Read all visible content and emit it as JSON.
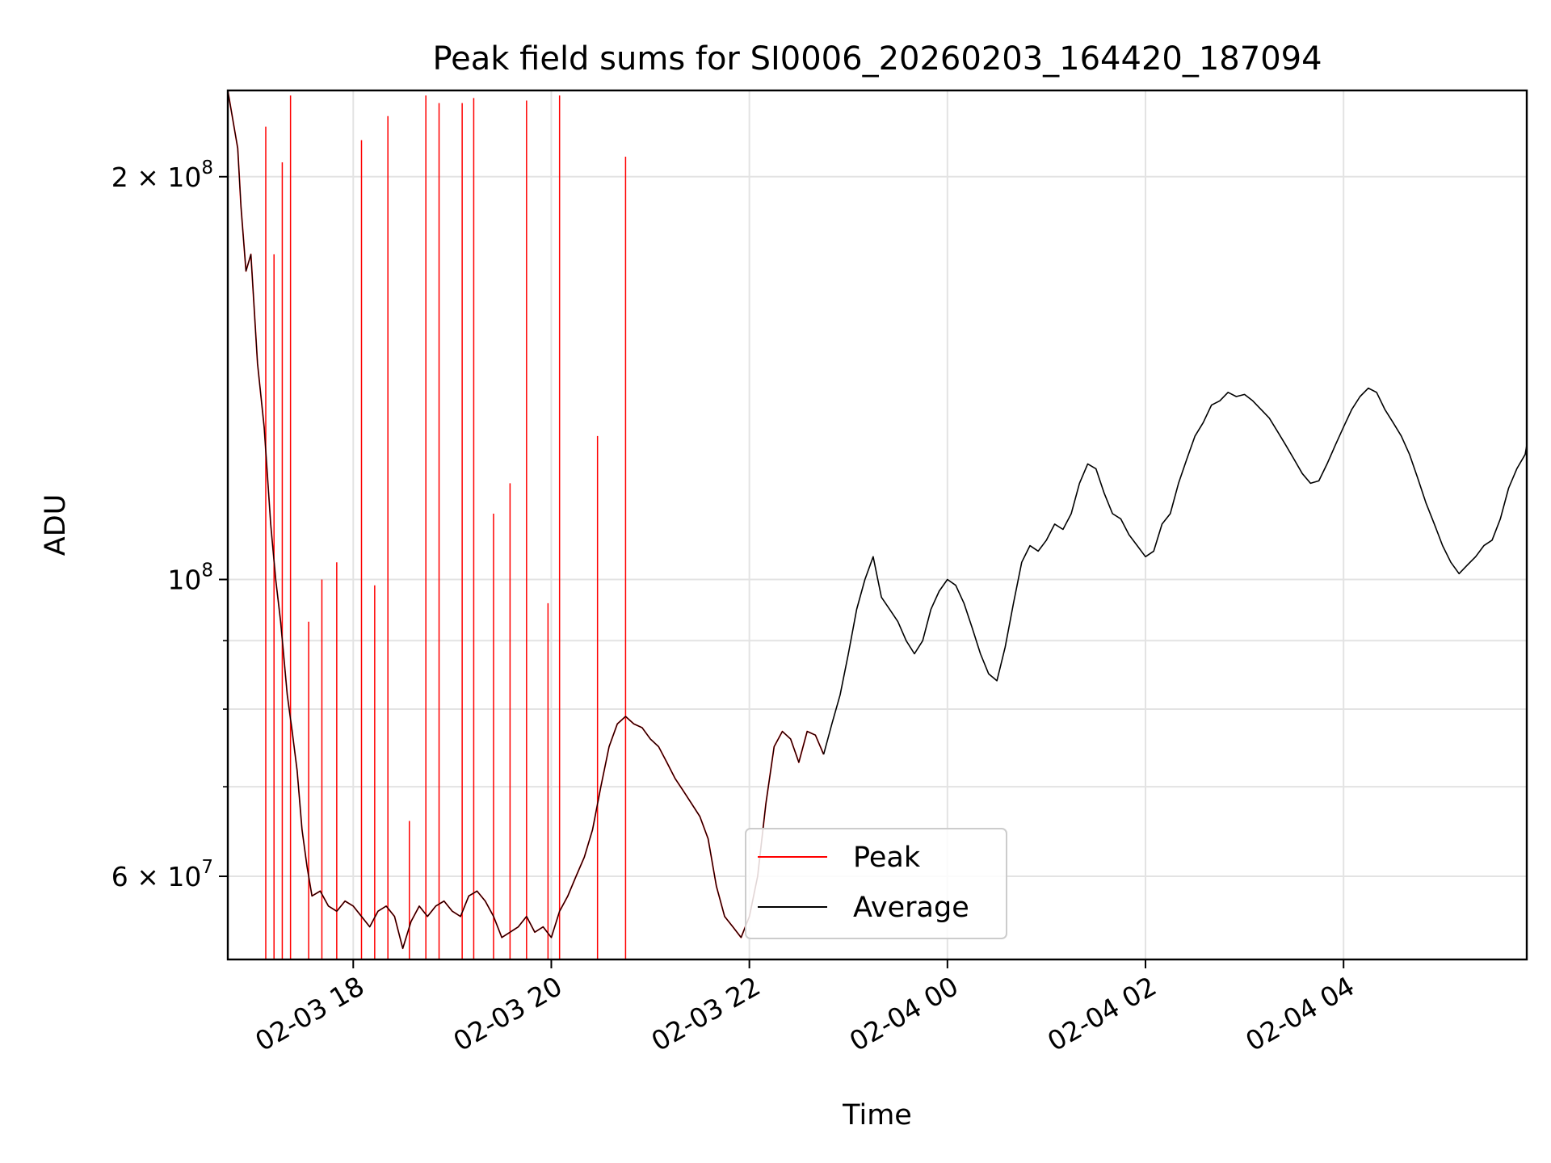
{
  "chart_data": {
    "type": "line",
    "title": "Peak field sums for SI0006_20260203_164420_187094",
    "xlabel": "Time",
    "ylabel": "ADU",
    "yscale": "log",
    "ylim": [
      52000000,
      232000000
    ],
    "xlim": [
      "2026-02-03 16:44",
      "2026-02-04 05:51"
    ],
    "grid": true,
    "legend": "bottom-center",
    "x_ticks": [
      {
        "label": "02-03 18",
        "t": "2026-02-03 18:00"
      },
      {
        "label": "02-03 20",
        "t": "2026-02-03 20:00"
      },
      {
        "label": "02-03 22",
        "t": "2026-02-03 22:00"
      },
      {
        "label": "02-04 00",
        "t": "2026-02-04 00:00"
      },
      {
        "label": "02-04 02",
        "t": "2026-02-04 02:00"
      },
      {
        "label": "02-04 04",
        "t": "2026-02-04 04:00"
      }
    ],
    "y_ticks": [
      {
        "base": "2",
        "exp": "8",
        "value": 200000000
      },
      {
        "base": "",
        "exp": "8",
        "value": 100000000
      },
      {
        "base": "6",
        "exp": "7",
        "value": 60000000
      }
    ],
    "y_minor_ticks": [
      70000000,
      80000000,
      90000000
    ],
    "series": [
      {
        "name": "Peak",
        "color": "#ff0000",
        "points": [
          [
            "2026-02-03 16:44",
            232000000
          ],
          [
            "2026-02-03 16:50",
            210000000
          ],
          [
            "2026-02-03 16:52",
            190000000
          ],
          [
            "2026-02-03 16:55",
            170000000
          ],
          [
            "2026-02-03 16:58",
            175000000
          ],
          [
            "2026-02-03 17:02",
            145000000
          ],
          [
            "2026-02-03 17:06",
            130000000
          ],
          [
            "2026-02-03 17:10",
            110000000
          ],
          [
            "2026-02-03 17:13",
            100000000
          ],
          [
            "2026-02-03 17:16",
            93000000
          ],
          [
            "2026-02-03 17:20",
            82000000
          ],
          [
            "2026-02-03 17:23",
            77000000
          ],
          [
            "2026-02-03 17:26",
            72000000
          ],
          [
            "2026-02-03 17:29",
            65000000
          ],
          [
            "2026-02-03 17:32",
            61000000
          ],
          [
            "2026-02-03 17:35",
            58000000
          ],
          [
            "2026-02-03 17:40",
            58500000
          ],
          [
            "2026-02-03 17:45",
            57000000
          ],
          [
            "2026-02-03 17:50",
            56500000
          ],
          [
            "2026-02-03 17:55",
            57500000
          ],
          [
            "2026-02-03 18:00",
            57000000
          ],
          [
            "2026-02-03 18:05",
            56000000
          ],
          [
            "2026-02-03 18:10",
            55000000
          ],
          [
            "2026-02-03 18:15",
            56500000
          ],
          [
            "2026-02-03 18:20",
            57000000
          ],
          [
            "2026-02-03 18:25",
            56000000
          ],
          [
            "2026-02-03 18:30",
            53000000
          ],
          [
            "2026-02-03 18:35",
            55500000
          ],
          [
            "2026-02-03 18:40",
            57000000
          ],
          [
            "2026-02-03 18:45",
            56000000
          ],
          [
            "2026-02-03 18:50",
            57000000
          ],
          [
            "2026-02-03 18:55",
            57500000
          ],
          [
            "2026-02-03 19:00",
            56500000
          ],
          [
            "2026-02-03 19:05",
            56000000
          ],
          [
            "2026-02-03 19:10",
            58000000
          ],
          [
            "2026-02-03 19:15",
            58500000
          ],
          [
            "2026-02-03 19:20",
            57500000
          ],
          [
            "2026-02-03 19:25",
            56000000
          ],
          [
            "2026-02-03 19:30",
            54000000
          ],
          [
            "2026-02-03 19:35",
            54500000
          ],
          [
            "2026-02-03 19:40",
            55000000
          ],
          [
            "2026-02-03 19:45",
            56000000
          ],
          [
            "2026-02-03 19:50",
            54500000
          ],
          [
            "2026-02-03 19:55",
            55000000
          ],
          [
            "2026-02-03 20:00",
            54000000
          ],
          [
            "2026-02-03 20:05",
            56500000
          ],
          [
            "2026-02-03 20:10",
            58000000
          ],
          [
            "2026-02-03 20:15",
            60000000
          ],
          [
            "2026-02-03 20:20",
            62000000
          ],
          [
            "2026-02-03 20:25",
            65000000
          ],
          [
            "2026-02-03 20:30",
            70000000
          ],
          [
            "2026-02-03 20:35",
            75000000
          ],
          [
            "2026-02-03 20:40",
            78000000
          ],
          [
            "2026-02-03 20:45",
            79000000
          ],
          [
            "2026-02-03 20:50",
            78000000
          ],
          [
            "2026-02-03 20:55",
            77500000
          ],
          [
            "2026-02-03 21:00",
            76000000
          ],
          [
            "2026-02-03 21:05",
            75000000
          ],
          [
            "2026-02-03 21:10",
            73000000
          ],
          [
            "2026-02-03 21:15",
            71000000
          ],
          [
            "2026-02-03 21:20",
            69500000
          ],
          [
            "2026-02-03 21:25",
            68000000
          ],
          [
            "2026-02-03 21:30",
            66500000
          ],
          [
            "2026-02-03 21:35",
            64000000
          ],
          [
            "2026-02-03 21:40",
            59000000
          ],
          [
            "2026-02-03 21:45",
            56000000
          ],
          [
            "2026-02-03 21:50",
            55000000
          ],
          [
            "2026-02-03 21:55",
            54000000
          ],
          [
            "2026-02-03 22:00",
            56000000
          ],
          [
            "2026-02-03 22:05",
            60000000
          ],
          [
            "2026-02-03 22:10",
            68000000
          ],
          [
            "2026-02-03 22:15",
            75000000
          ],
          [
            "2026-02-03 22:20",
            77000000
          ],
          [
            "2026-02-03 22:25",
            76000000
          ],
          [
            "2026-02-03 22:30",
            73000000
          ],
          [
            "2026-02-03 22:35",
            77000000
          ],
          [
            "2026-02-03 22:40",
            76500000
          ],
          [
            "2026-02-03 22:45",
            74000000
          ]
        ],
        "spikes": [
          [
            "2026-02-03 17:07",
            218000000
          ],
          [
            "2026-02-03 17:12",
            175000000
          ],
          [
            "2026-02-03 17:17",
            205000000
          ],
          [
            "2026-02-03 17:22",
            230000000
          ],
          [
            "2026-02-03 17:33",
            93000000
          ],
          [
            "2026-02-03 17:41",
            100000000
          ],
          [
            "2026-02-03 17:50",
            103000000
          ],
          [
            "2026-02-03 18:05",
            213000000
          ],
          [
            "2026-02-03 18:13",
            99000000
          ],
          [
            "2026-02-03 18:21",
            222000000
          ],
          [
            "2026-02-03 18:34",
            66000000
          ],
          [
            "2026-02-03 18:44",
            230000000
          ],
          [
            "2026-02-03 18:52",
            227000000
          ],
          [
            "2026-02-03 19:06",
            227000000
          ],
          [
            "2026-02-03 19:13",
            229000000
          ],
          [
            "2026-02-03 19:25",
            112000000
          ],
          [
            "2026-02-03 19:35",
            118000000
          ],
          [
            "2026-02-03 19:45",
            228000000
          ],
          [
            "2026-02-03 19:58",
            96000000
          ],
          [
            "2026-02-03 20:05",
            230000000
          ],
          [
            "2026-02-03 20:28",
            128000000
          ],
          [
            "2026-02-03 20:45",
            207000000
          ]
        ]
      },
      {
        "name": "Average",
        "color": "#000000",
        "points": [
          [
            "2026-02-03 22:45",
            74000000
          ],
          [
            "2026-02-03 22:50",
            78000000
          ],
          [
            "2026-02-03 22:55",
            82000000
          ],
          [
            "2026-02-03 23:00",
            88000000
          ],
          [
            "2026-02-03 23:05",
            95000000
          ],
          [
            "2026-02-03 23:10",
            100000000
          ],
          [
            "2026-02-03 23:15",
            104000000
          ],
          [
            "2026-02-03 23:20",
            97000000
          ],
          [
            "2026-02-03 23:25",
            95000000
          ],
          [
            "2026-02-03 23:30",
            93000000
          ],
          [
            "2026-02-03 23:35",
            90000000
          ],
          [
            "2026-02-03 23:40",
            88000000
          ],
          [
            "2026-02-03 23:45",
            90000000
          ],
          [
            "2026-02-03 23:50",
            95000000
          ],
          [
            "2026-02-03 23:55",
            98000000
          ],
          [
            "2026-02-04 00:00",
            100000000
          ],
          [
            "2026-02-04 00:05",
            99000000
          ],
          [
            "2026-02-04 00:10",
            96000000
          ],
          [
            "2026-02-04 00:15",
            92000000
          ],
          [
            "2026-02-04 00:20",
            88000000
          ],
          [
            "2026-02-04 00:25",
            85000000
          ],
          [
            "2026-02-04 00:30",
            84000000
          ],
          [
            "2026-02-04 00:35",
            89000000
          ],
          [
            "2026-02-04 00:40",
            96000000
          ],
          [
            "2026-02-04 00:45",
            103000000
          ],
          [
            "2026-02-04 00:50",
            106000000
          ],
          [
            "2026-02-04 00:55",
            105000000
          ],
          [
            "2026-02-04 01:00",
            107000000
          ],
          [
            "2026-02-04 01:05",
            110000000
          ],
          [
            "2026-02-04 01:10",
            109000000
          ],
          [
            "2026-02-04 01:15",
            112000000
          ],
          [
            "2026-02-04 01:20",
            118000000
          ],
          [
            "2026-02-04 01:25",
            122000000
          ],
          [
            "2026-02-04 01:30",
            121000000
          ],
          [
            "2026-02-04 01:35",
            116000000
          ],
          [
            "2026-02-04 01:40",
            112000000
          ],
          [
            "2026-02-04 01:45",
            111000000
          ],
          [
            "2026-02-04 01:50",
            108000000
          ],
          [
            "2026-02-04 01:55",
            106000000
          ],
          [
            "2026-02-04 02:00",
            104000000
          ],
          [
            "2026-02-04 02:05",
            105000000
          ],
          [
            "2026-02-04 02:10",
            110000000
          ],
          [
            "2026-02-04 02:15",
            112000000
          ],
          [
            "2026-02-04 02:20",
            118000000
          ],
          [
            "2026-02-04 02:25",
            123000000
          ],
          [
            "2026-02-04 02:30",
            128000000
          ],
          [
            "2026-02-04 02:35",
            131000000
          ],
          [
            "2026-02-04 02:40",
            135000000
          ],
          [
            "2026-02-04 02:45",
            136000000
          ],
          [
            "2026-02-04 02:50",
            138000000
          ],
          [
            "2026-02-04 02:55",
            137000000
          ],
          [
            "2026-02-04 03:00",
            137500000
          ],
          [
            "2026-02-04 03:05",
            136000000
          ],
          [
            "2026-02-04 03:10",
            134000000
          ],
          [
            "2026-02-04 03:15",
            132000000
          ],
          [
            "2026-02-04 03:20",
            129000000
          ],
          [
            "2026-02-04 03:25",
            126000000
          ],
          [
            "2026-02-04 03:30",
            123000000
          ],
          [
            "2026-02-04 03:35",
            120000000
          ],
          [
            "2026-02-04 03:40",
            118000000
          ],
          [
            "2026-02-04 03:45",
            118500000
          ],
          [
            "2026-02-04 03:50",
            122000000
          ],
          [
            "2026-02-04 03:55",
            126000000
          ],
          [
            "2026-02-04 04:00",
            130000000
          ],
          [
            "2026-02-04 04:05",
            134000000
          ],
          [
            "2026-02-04 04:10",
            137000000
          ],
          [
            "2026-02-04 04:15",
            139000000
          ],
          [
            "2026-02-04 04:20",
            138000000
          ],
          [
            "2026-02-04 04:25",
            134000000
          ],
          [
            "2026-02-04 04:30",
            131000000
          ],
          [
            "2026-02-04 04:35",
            128000000
          ],
          [
            "2026-02-04 04:40",
            124000000
          ],
          [
            "2026-02-04 04:45",
            119000000
          ],
          [
            "2026-02-04 04:50",
            114000000
          ],
          [
            "2026-02-04 04:55",
            110000000
          ],
          [
            "2026-02-04 05:00",
            106000000
          ],
          [
            "2026-02-04 05:05",
            103000000
          ],
          [
            "2026-02-04 05:10",
            101000000
          ],
          [
            "2026-02-04 05:15",
            102500000
          ],
          [
            "2026-02-04 05:20",
            104000000
          ],
          [
            "2026-02-04 05:25",
            106000000
          ],
          [
            "2026-02-04 05:30",
            107000000
          ],
          [
            "2026-02-04 05:35",
            111000000
          ],
          [
            "2026-02-04 05:40",
            117000000
          ],
          [
            "2026-02-04 05:45",
            121000000
          ],
          [
            "2026-02-04 05:50",
            124000000
          ],
          [
            "2026-02-04 05:51",
            126000000
          ]
        ]
      }
    ]
  }
}
